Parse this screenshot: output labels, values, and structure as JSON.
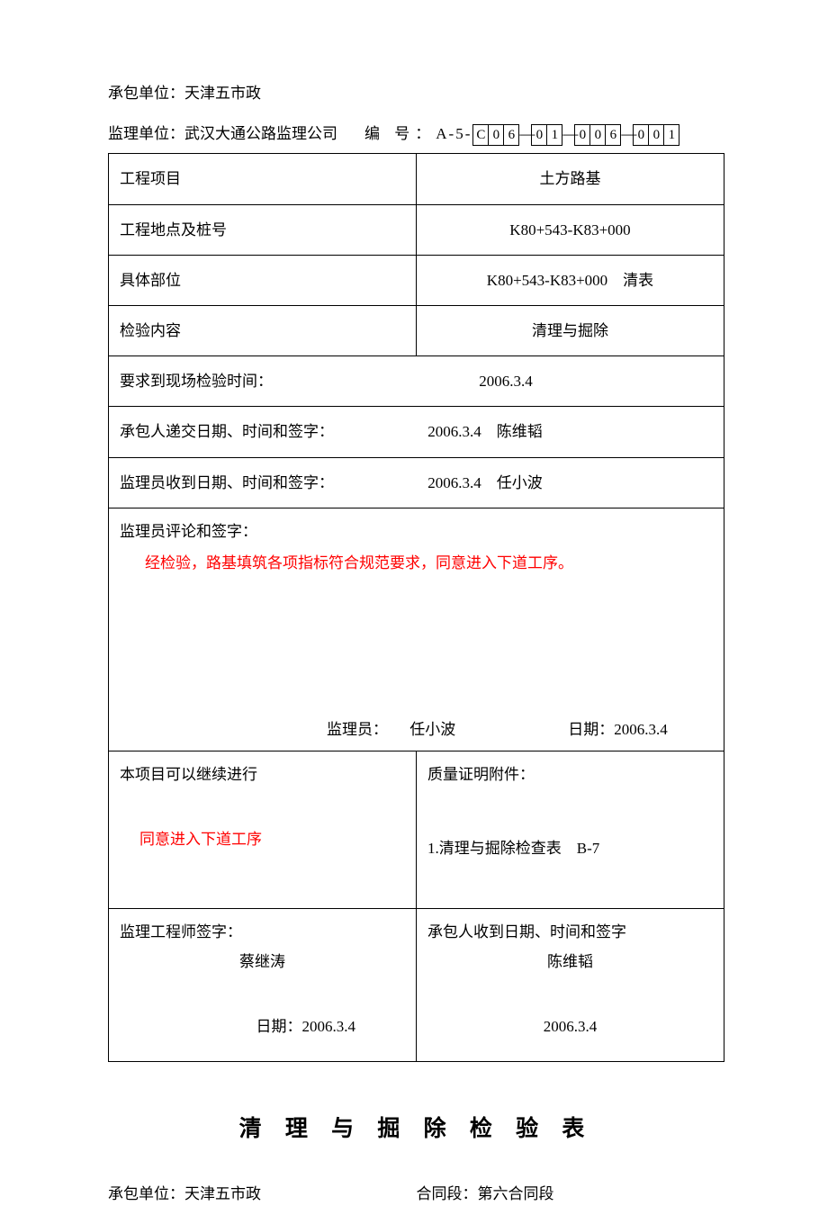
{
  "header": {
    "contractor_label": "承包单位：",
    "contractor_value": "天津五市政",
    "supervisor_label": "监理单位：",
    "supervisor_value": "武汉大通公路监理公司",
    "code_label": "编 号：",
    "code_prefix": "A-5-",
    "code_boxes": [
      "C",
      "0",
      "6",
      "—",
      "0",
      "1",
      "—",
      "0",
      "0",
      "6",
      "—",
      "0",
      "0",
      "1"
    ]
  },
  "table": {
    "project_label": "工程项目",
    "project_value": "土方路基",
    "location_label": "工程地点及桩号",
    "location_value": "K80+543-K83+000",
    "part_label": "具体部位",
    "part_value": "K80+543-K83+000　清表",
    "content_label": "检验内容",
    "content_value": "清理与掘除",
    "site_time_label": "要求到现场检验时间：",
    "site_time_value": "2006.3.4",
    "submit_label": "承包人递交日期、时间和签字：",
    "submit_value": "2006.3.4　陈维韬",
    "receive_label": "监理员收到日期、时间和签字：",
    "receive_value": "2006.3.4　任小波",
    "comment_label": "监理员评论和签字：",
    "comment_text": "经检验，路基填筑各项指标符合规范要求，同意进入下道工序。",
    "comment_supervisor_label": "监理员：",
    "comment_supervisor_name": "任小波",
    "comment_date_label": "日期：",
    "comment_date_value": "2006.3.4",
    "continue_label": "本项目可以继续进行",
    "continue_text": "同意进入下道工序",
    "attach_label": "质量证明附件：",
    "attach_item": "1.清理与掘除检查表　B-7",
    "engineer_sign_label": "监理工程师签字：",
    "engineer_sign_name": "蔡继涛",
    "engineer_sign_date_label": "日期：",
    "engineer_sign_date": "2006.3.4",
    "contractor_receive_label": "承包人收到日期、时间和签字",
    "contractor_receive_name": "陈维韬",
    "contractor_receive_date": "2006.3.4"
  },
  "bottom": {
    "title": "清 理 与 掘 除 检 验 表",
    "contractor_label": "承包单位：",
    "contractor_value": "天津五市政",
    "section_label": "合同段：",
    "section_value": "第六合同段"
  },
  "colors": {
    "text": "#000000",
    "highlight": "#ff0000",
    "background": "#ffffff",
    "border": "#000000"
  }
}
